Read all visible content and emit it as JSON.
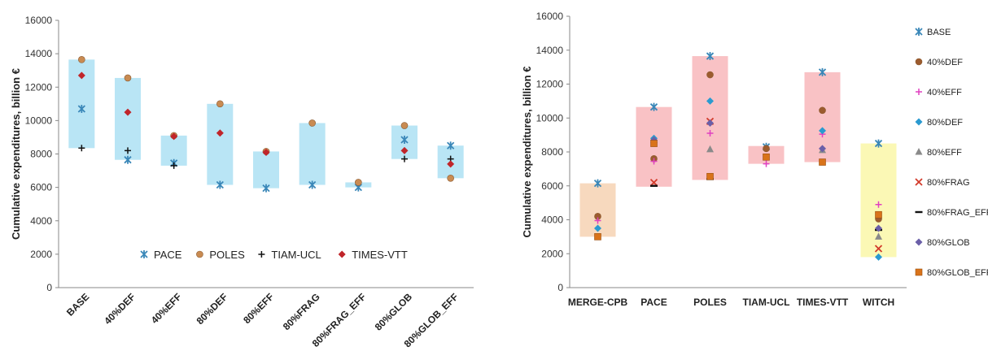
{
  "chart_data": [
    {
      "type": "scatter",
      "ylabel": "Cumulative expenditures, billion €",
      "ylim": [
        0,
        16000
      ],
      "yticks": [
        0,
        2000,
        4000,
        6000,
        8000,
        10000,
        12000,
        14000,
        16000
      ],
      "categories": [
        "BASE",
        "40%DEF",
        "40%EFF",
        "80%DEF",
        "80%EFF",
        "80%FRAG",
        "80%FRAG_EFF",
        "80%GLOB",
        "80%GLOB_EFF"
      ],
      "range_color": "#b9e5f5",
      "legend_position": "inside-bottom",
      "ranges": [
        [
          8350,
          13650
        ],
        [
          7650,
          12550
        ],
        [
          7300,
          9100
        ],
        [
          6150,
          11000
        ],
        [
          5950,
          8150
        ],
        [
          6150,
          9850
        ],
        [
          6000,
          6300
        ],
        [
          7700,
          9700
        ],
        [
          6550,
          8500
        ]
      ],
      "series": [
        {
          "name": "PACE",
          "marker": "star",
          "color": "#3a87b8",
          "values": [
            10700,
            7650,
            7450,
            6150,
            5950,
            6150,
            6000,
            8850,
            8500
          ]
        },
        {
          "name": "POLES",
          "marker": "circle",
          "color": "#c98b52",
          "values": [
            13650,
            12550,
            9100,
            11000,
            8150,
            9850,
            6300,
            9700,
            6550
          ]
        },
        {
          "name": "TIAM-UCL",
          "marker": "plus",
          "color": "#111111",
          "values": [
            8350,
            8200,
            7300,
            null,
            null,
            null,
            null,
            7700,
            7700
          ]
        },
        {
          "name": "TIMES-VTT",
          "marker": "diamond",
          "color": "#c0252a",
          "values": [
            12700,
            10500,
            9050,
            9250,
            8100,
            null,
            null,
            8200,
            7400
          ]
        }
      ]
    },
    {
      "type": "scatter",
      "ylabel": "Cumulative expenditures, billion €",
      "ylim": [
        0,
        16000
      ],
      "yticks": [
        0,
        2000,
        4000,
        6000,
        8000,
        10000,
        12000,
        14000,
        16000
      ],
      "categories": [
        "MERGE-CPB",
        "PACE",
        "POLES",
        "TIAM-UCL",
        "TIMES-VTT",
        "WITCH"
      ],
      "legend_position": "right",
      "ranges": [
        [
          3000,
          6150
        ],
        [
          5950,
          10650
        ],
        [
          6350,
          13650
        ],
        [
          7300,
          8350
        ],
        [
          7400,
          12700
        ],
        [
          1800,
          8500
        ]
      ],
      "range_colors": [
        "#f7d9be",
        "#f9c2c5",
        "#f9c2c5",
        "#f9c2c5",
        "#f9c2c5",
        "#fbf8b5"
      ],
      "series": [
        {
          "name": "BASE",
          "marker": "star",
          "color": "#3a87b8",
          "values": [
            6150,
            10650,
            13650,
            8300,
            12700,
            8500
          ]
        },
        {
          "name": "40%DEF",
          "marker": "circle",
          "color": "#9c5b2e",
          "values": [
            4200,
            7600,
            12550,
            8200,
            10450,
            4050
          ]
        },
        {
          "name": "40%EFF",
          "marker": "plus",
          "color": "#e040c0",
          "values": [
            3950,
            7450,
            9100,
            7300,
            9050,
            4900
          ]
        },
        {
          "name": "80%DEF",
          "marker": "diamond",
          "color": "#2a9ad0",
          "values": [
            3500,
            8800,
            11000,
            null,
            9250,
            1800
          ]
        },
        {
          "name": "80%EFF",
          "marker": "triangle",
          "color": "#8a8a8a",
          "values": [
            null,
            8700,
            8150,
            null,
            8100,
            3000
          ]
        },
        {
          "name": "80%FRAG",
          "marker": "x",
          "color": "#d23a2a",
          "values": [
            null,
            6200,
            9800,
            null,
            null,
            2300
          ]
        },
        {
          "name": "80%FRAG_EFF",
          "marker": "dash",
          "color": "#111111",
          "values": [
            null,
            6000,
            6400,
            null,
            null,
            3400
          ]
        },
        {
          "name": "80%GLOB",
          "marker": "diamond",
          "color": "#6b5fa8",
          "values": [
            null,
            8700,
            9700,
            null,
            8200,
            3500
          ]
        },
        {
          "name": "80%GLOB_EFF",
          "marker": "square",
          "color": "#d9731a",
          "values": [
            3000,
            8500,
            6550,
            7700,
            7400,
            4300
          ]
        }
      ]
    }
  ]
}
